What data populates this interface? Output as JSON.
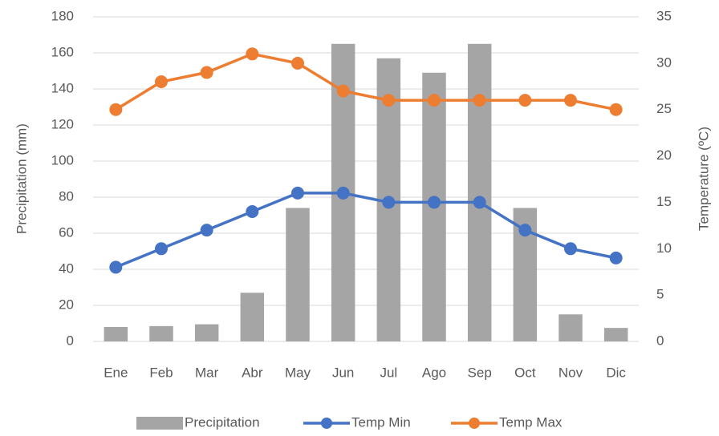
{
  "chart_data": {
    "type": "combo",
    "categories": [
      "Ene",
      "Feb",
      "Mar",
      "Abr",
      "May",
      "Jun",
      "Jul",
      "Ago",
      "Sep",
      "Oct",
      "Nov",
      "Dic"
    ],
    "series": [
      {
        "name": "Precipitation",
        "type": "bar",
        "color": "#a5a5a5",
        "values": [
          8,
          8.5,
          9.5,
          27,
          74,
          165,
          157,
          149,
          165,
          74,
          15,
          7.5
        ]
      },
      {
        "name": "Temp Min",
        "type": "line",
        "axis": "y2",
        "color": "#4472c4",
        "values": [
          8,
          10,
          12,
          14,
          16,
          16,
          15,
          15,
          15,
          12,
          10,
          9
        ]
      },
      {
        "name": "Temp Max",
        "type": "line",
        "axis": "y2",
        "color": "#ed7d31",
        "values": [
          25,
          28,
          29,
          31,
          30,
          27,
          26,
          26,
          26,
          26,
          26,
          25
        ]
      }
    ],
    "y_label": "Precipitation (mm)",
    "y2_label": "Temperature (ºC)",
    "ylim": [
      0,
      180
    ],
    "yticks": [
      0,
      20,
      40,
      60,
      80,
      100,
      120,
      140,
      160,
      180
    ],
    "y2lim": [
      0,
      35
    ],
    "y2ticks": [
      0,
      5,
      10,
      15,
      20,
      25,
      30,
      35
    ],
    "grid": true,
    "legend": "bottom"
  }
}
